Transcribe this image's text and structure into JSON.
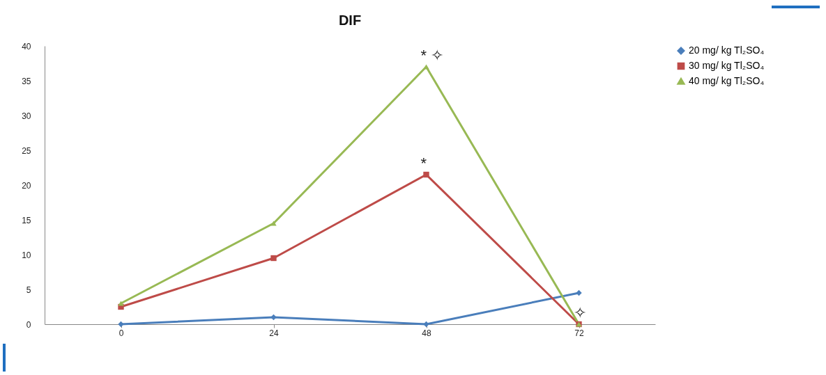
{
  "chart_data": {
    "type": "line",
    "title": "DIF",
    "categories": [
      "0",
      "24",
      "48",
      "72"
    ],
    "series": [
      {
        "name": "20 mg/ kg Tl₂SO₄",
        "color": "#4a7ebb",
        "marker": "diamond",
        "values": [
          0,
          1,
          0,
          4.5
        ]
      },
      {
        "name": "30 mg/ kg Tl₂SO₄",
        "color": "#be4b48",
        "marker": "square",
        "values": [
          2.5,
          9.5,
          21.5,
          0
        ]
      },
      {
        "name": "40 mg/ kg Tl₂SO₄",
        "color": "#98b954",
        "marker": "triangle",
        "values": [
          3,
          14.5,
          37,
          0
        ]
      }
    ],
    "ylim": [
      0,
      40
    ],
    "yticks": [
      0,
      5,
      10,
      15,
      20,
      25,
      30,
      35,
      40
    ],
    "grid": false,
    "legend": "right",
    "line_style": "solid",
    "annotations": [
      {
        "text": "* ✧",
        "x": "48",
        "y": 37
      },
      {
        "text": "*",
        "x": "48",
        "y": 21.5
      },
      {
        "text": "✧",
        "x": "72",
        "y": 0
      }
    ]
  }
}
